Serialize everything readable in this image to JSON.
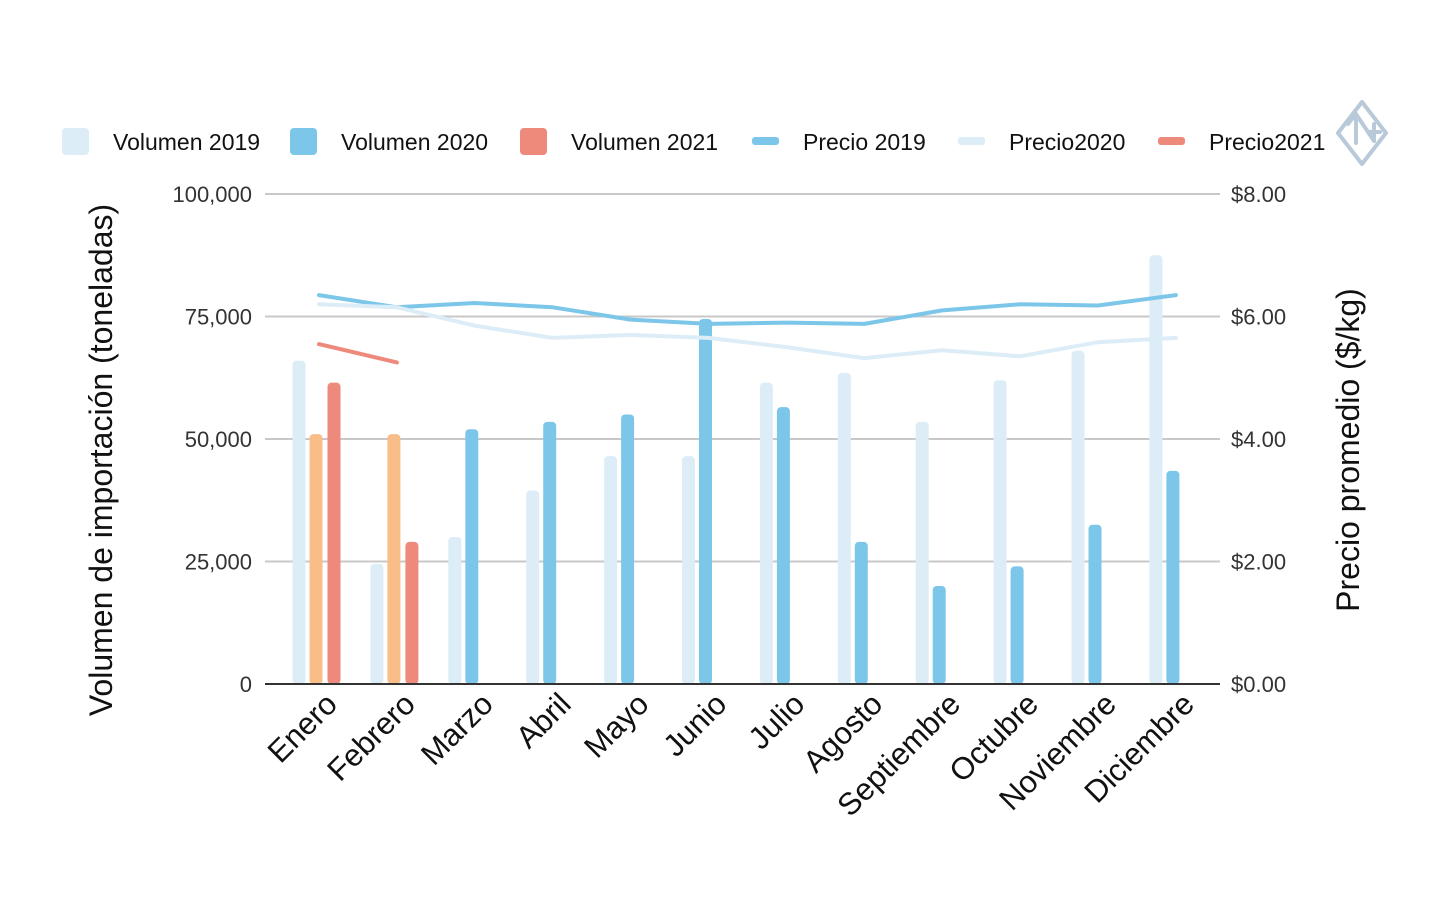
{
  "chart_data": {
    "type": "bar",
    "title": "",
    "xlabel": "",
    "ylabel": "Volumen de importación (toneladas)",
    "y2label": "Precio promedio ($/kg)",
    "categories": [
      "Enero",
      "Febrero",
      "Marzo",
      "Abril",
      "Mayo",
      "Junio",
      "Julio",
      "Agosto",
      "Septiembre",
      "Octubre",
      "Noviembre",
      "Diciembre"
    ],
    "ylim": [
      0,
      100000
    ],
    "y2lim": [
      0,
      8
    ],
    "yticks": [
      "0",
      "25,000",
      "50,000",
      "75,000",
      "100,000"
    ],
    "y2ticks": [
      "$0.00",
      "$2.00",
      "$4.00",
      "$6.00",
      "$8.00"
    ],
    "grid": true,
    "legend_position": "top",
    "bar_series": [
      {
        "name": "Volumen 2019",
        "color": "#dcedf7",
        "values": [
          66000,
          24500,
          30000,
          39500,
          46500,
          46500,
          61500,
          63500,
          53500,
          62000,
          68000,
          87500
        ]
      },
      {
        "name": "",
        "color": "#f9bd88",
        "values": [
          51000,
          51000,
          null,
          null,
          null,
          null,
          null,
          null,
          null,
          null,
          null,
          null
        ]
      },
      {
        "name": "Volumen 2020",
        "color": "#7cc6ea",
        "values": [
          null,
          null,
          52000,
          53500,
          55000,
          74500,
          56500,
          29000,
          20000,
          24000,
          32500,
          43500
        ]
      },
      {
        "name": "Volumen 2021",
        "color": "#ee8a7b",
        "values": [
          61500,
          29000,
          null,
          null,
          null,
          null,
          null,
          null,
          null,
          null,
          null,
          null
        ]
      }
    ],
    "line_series": [
      {
        "name": "Precio 2019",
        "color": "#7cc6ea",
        "values": [
          6.35,
          6.15,
          6.22,
          6.15,
          5.95,
          5.88,
          5.9,
          5.88,
          6.1,
          6.2,
          6.18,
          6.35
        ]
      },
      {
        "name": "Precio2020",
        "color": "#dcedf7",
        "values": [
          6.2,
          6.15,
          5.85,
          5.65,
          5.7,
          5.65,
          5.5,
          5.32,
          5.45,
          5.35,
          5.58,
          5.65
        ]
      },
      {
        "name": "Precio2021",
        "color": "#ee8a7b",
        "values": [
          5.55,
          5.25,
          null,
          null,
          null,
          null,
          null,
          null,
          null,
          null,
          null,
          null
        ]
      }
    ],
    "legend": [
      {
        "label": "Volumen 2019",
        "kind": "square",
        "color": "#dcedf7"
      },
      {
        "label": "Volumen 2020",
        "kind": "square",
        "color": "#7cc6ea"
      },
      {
        "label": "Volumen 2021",
        "kind": "square",
        "color": "#ee8a7b"
      },
      {
        "label": "Precio 2019",
        "kind": "line",
        "color": "#7cc6ea"
      },
      {
        "label": "Precio2020",
        "kind": "line",
        "color": "#dcedf7"
      },
      {
        "label": "Precio2021",
        "kind": "line",
        "color": "#ee8a7b"
      }
    ],
    "logo_icon": "diamond-n-logo-icon"
  }
}
